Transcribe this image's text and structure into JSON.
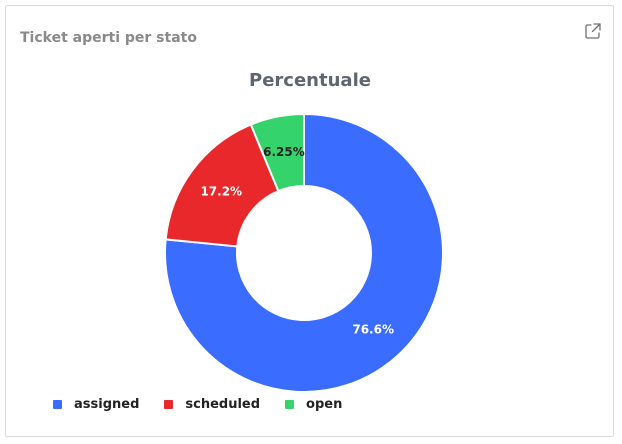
{
  "card": {
    "title": "Ticket aperti per stato"
  },
  "colors": {
    "assigned": "#3a6cff",
    "scheduled": "#e8282b",
    "open": "#35d36b",
    "label_light": "#ffffff",
    "label_dark": "#222222"
  },
  "chart_data": {
    "type": "pie",
    "title": "Percentuale",
    "categories": [
      "assigned",
      "scheduled",
      "open"
    ],
    "values": [
      76.6,
      17.2,
      6.25
    ],
    "labels": [
      "76.6%",
      "17.2%",
      "6.25%"
    ],
    "donut": true,
    "legend_position": "bottom-left"
  },
  "icons": {
    "expand": "external-link-icon"
  }
}
